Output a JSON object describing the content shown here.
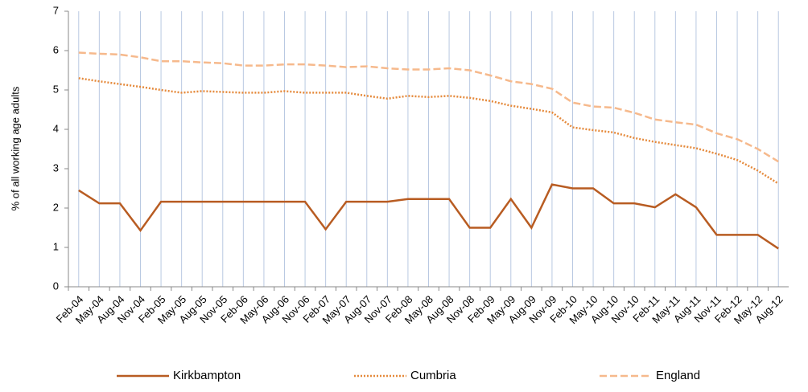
{
  "chart_data": {
    "type": "line",
    "y_label": "% of all working age adults",
    "categories": [
      "Feb-04",
      "May-04",
      "Aug-04",
      "Nov-04",
      "Feb-05",
      "May-05",
      "Aug-05",
      "Nov-05",
      "Feb-06",
      "May-06",
      "Aug-06",
      "Nov-06",
      "Feb-07",
      "May-07",
      "Aug-07",
      "Nov-07",
      "Feb-08",
      "May-08",
      "Aug-08",
      "Nov-08",
      "Feb-09",
      "May-09",
      "Aug-09",
      "Nov-09",
      "Feb-10",
      "May-10",
      "Aug-10",
      "Nov-10",
      "Feb-11",
      "May-11",
      "Aug-11",
      "Nov-11",
      "Feb-12",
      "May-12",
      "Aug-12"
    ],
    "series": [
      {
        "name": "Kirkbampton",
        "color": "#b85c22",
        "style": "solid",
        "values": [
          2.45,
          2.12,
          2.12,
          1.43,
          2.16,
          2.16,
          2.16,
          2.16,
          2.16,
          2.16,
          2.16,
          2.16,
          1.46,
          2.16,
          2.16,
          2.16,
          2.23,
          2.23,
          2.23,
          1.5,
          1.5,
          2.23,
          1.5,
          2.6,
          2.5,
          2.5,
          2.12,
          2.12,
          2.02,
          2.35,
          2.02,
          1.32,
          1.32,
          1.32,
          0.97
        ]
      },
      {
        "name": "Cumbria",
        "color": "#e58a3c",
        "style": "dotted",
        "values": [
          5.3,
          5.22,
          5.15,
          5.08,
          5.0,
          4.93,
          4.97,
          4.95,
          4.93,
          4.93,
          4.97,
          4.93,
          4.93,
          4.93,
          4.85,
          4.78,
          4.85,
          4.82,
          4.85,
          4.8,
          4.72,
          4.6,
          4.52,
          4.43,
          4.05,
          3.98,
          3.92,
          3.78,
          3.68,
          3.6,
          3.52,
          3.38,
          3.22,
          2.95,
          2.62
        ]
      },
      {
        "name": "England",
        "color": "#f6b98c",
        "style": "dashed",
        "values": [
          5.95,
          5.92,
          5.9,
          5.83,
          5.73,
          5.73,
          5.7,
          5.68,
          5.62,
          5.62,
          5.65,
          5.65,
          5.62,
          5.58,
          5.6,
          5.55,
          5.52,
          5.52,
          5.55,
          5.5,
          5.37,
          5.22,
          5.15,
          5.03,
          4.68,
          4.58,
          4.55,
          4.42,
          4.25,
          4.18,
          4.12,
          3.9,
          3.75,
          3.5,
          3.18
        ]
      }
    ],
    "ylim": [
      0,
      7
    ],
    "yticks": [
      0,
      1,
      2,
      3,
      4,
      5,
      6,
      7
    ],
    "grid": "vertical",
    "legend": "bottom"
  }
}
